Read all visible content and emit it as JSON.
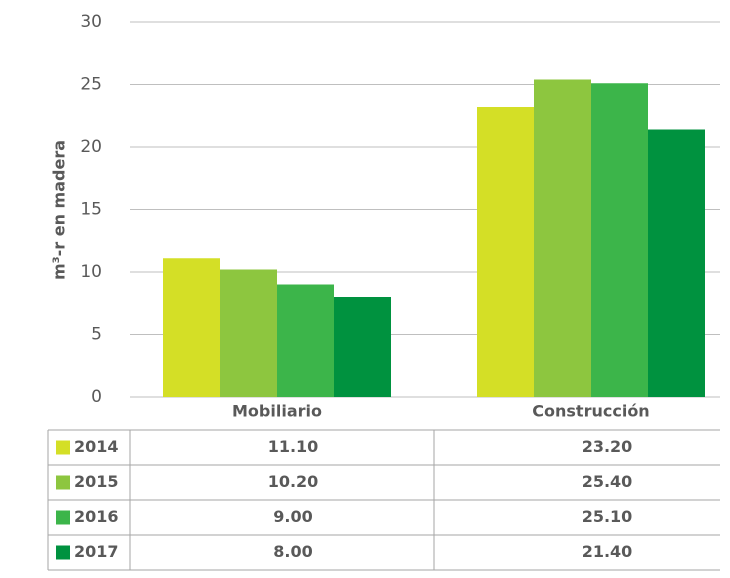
{
  "chart_data": {
    "type": "bar",
    "y_label": "m³-r en madera",
    "categories": [
      "Mobiliario",
      "Construcción"
    ],
    "series": [
      {
        "name": "2014",
        "color": "#d4df26",
        "values": [
          11.1,
          23.2
        ],
        "value_labels": [
          "11.10",
          "23.20"
        ]
      },
      {
        "name": "2015",
        "color": "#8dc63f",
        "values": [
          10.2,
          25.4
        ],
        "value_labels": [
          "10.20",
          "25.40"
        ]
      },
      {
        "name": "2016",
        "color": "#3cb54a",
        "values": [
          9.0,
          25.1
        ],
        "value_labels": [
          "9.00",
          "25.10"
        ]
      },
      {
        "name": "2017",
        "color": "#00923f",
        "values": [
          8.0,
          21.4
        ],
        "value_labels": [
          "8.00",
          "21.40"
        ]
      }
    ],
    "ylim": [
      0,
      30
    ],
    "yticks": [
      0,
      5,
      10,
      15,
      20,
      25,
      30
    ],
    "grid": true
  }
}
